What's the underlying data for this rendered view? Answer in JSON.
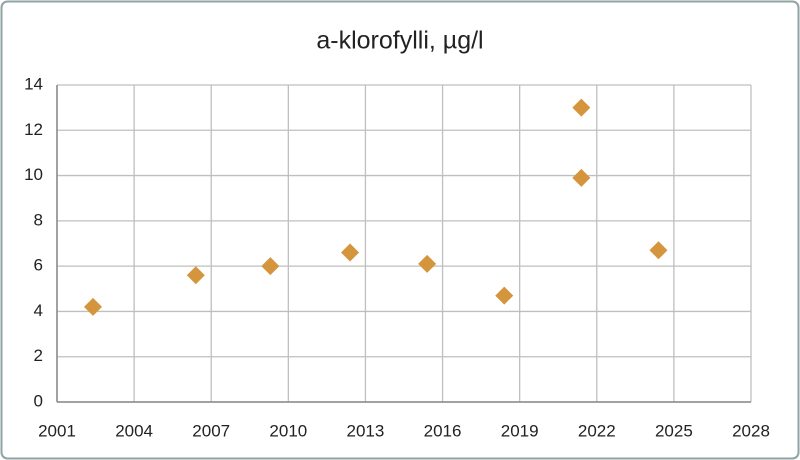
{
  "chart_data": {
    "type": "scatter",
    "title": "a-klorofylli, µg/l",
    "x": [
      2002.4,
      2006.4,
      2009.3,
      2012.4,
      2015.4,
      2018.4,
      2021.4,
      2021.4,
      2024.4
    ],
    "values": [
      4.2,
      5.6,
      6.0,
      6.6,
      6.1,
      4.7,
      9.9,
      13.0,
      6.7
    ],
    "color": "#d4953c",
    "xlim": [
      2001,
      2028
    ],
    "xticks": [
      2001,
      2004,
      2007,
      2010,
      2013,
      2016,
      2019,
      2022,
      2025,
      2028
    ],
    "ylim": [
      0,
      14
    ],
    "yticks": [
      0,
      2,
      4,
      6,
      8,
      10,
      12,
      14
    ],
    "grid": true
  }
}
